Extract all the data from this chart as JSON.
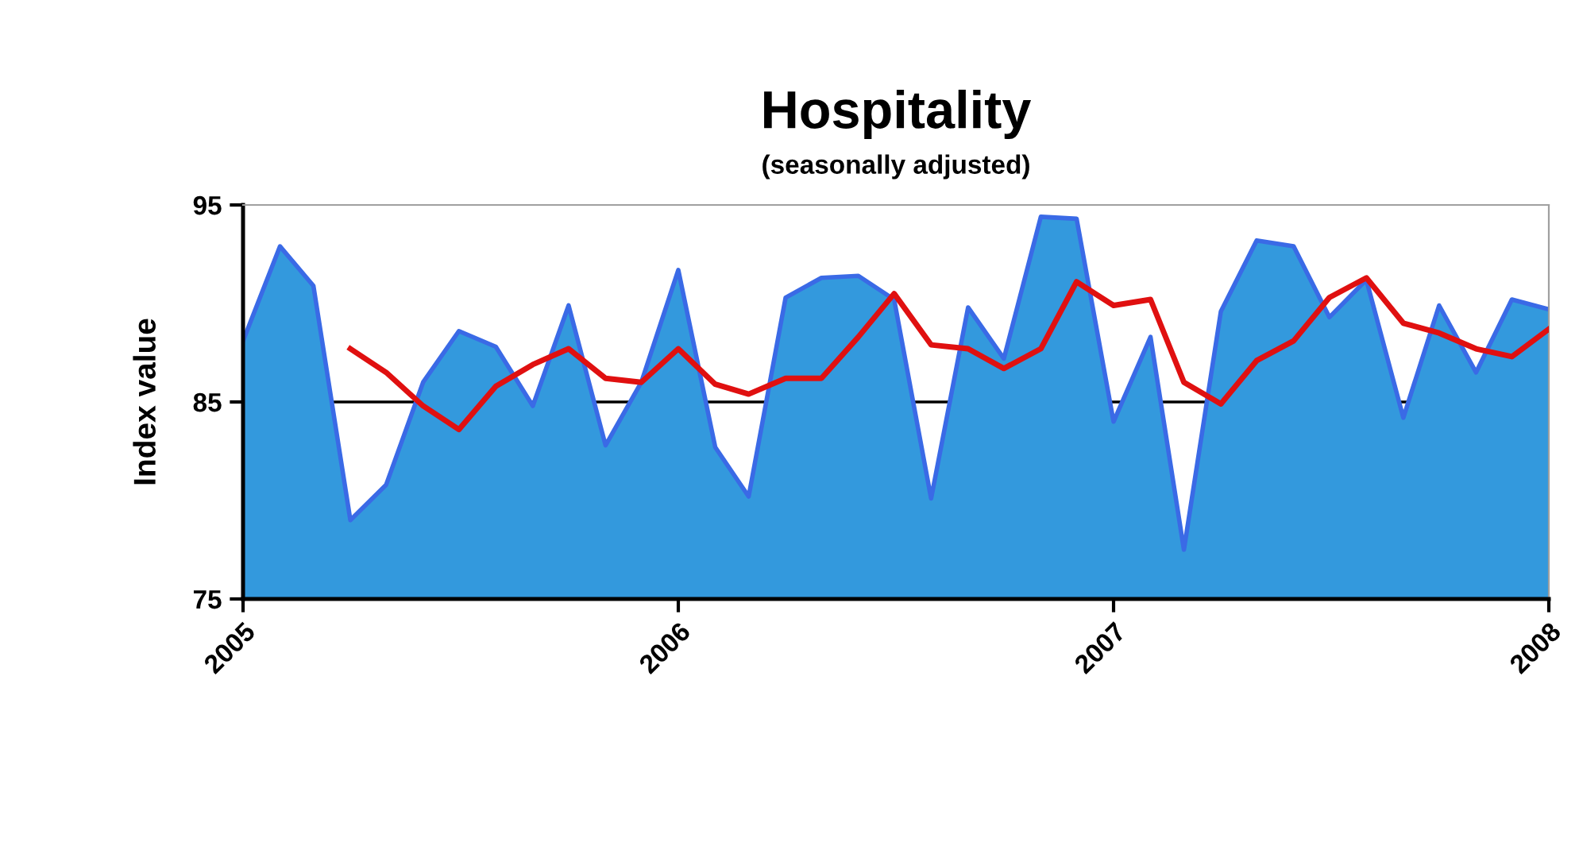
{
  "chart_data": {
    "type": "area",
    "title": "Hospitality",
    "subtitle": "(seasonally adjusted)",
    "ylabel": "Index value",
    "x": [
      "2005-01",
      "2005-02",
      "2005-03",
      "2005-04",
      "2005-05",
      "2005-06",
      "2005-07",
      "2005-08",
      "2005-09",
      "2005-10",
      "2005-11",
      "2005-12",
      "2006-01",
      "2006-02",
      "2006-03",
      "2006-04",
      "2006-05",
      "2006-06",
      "2006-07",
      "2006-08",
      "2006-09",
      "2006-10",
      "2006-11",
      "2006-12",
      "2007-01",
      "2007-02",
      "2007-03",
      "2007-04",
      "2007-05",
      "2007-06",
      "2007-07",
      "2007-08",
      "2007-09",
      "2007-10",
      "2007-11",
      "2007-12",
      "2008-01"
    ],
    "series": [
      {
        "color": "#3399dd",
        "values": [
          88.1,
          92.9,
          90.9,
          79.0,
          80.8,
          86.0,
          88.6,
          87.8,
          84.8,
          89.9,
          82.8,
          86.0,
          91.7,
          82.7,
          80.2,
          90.3,
          91.3,
          91.4,
          90.2,
          80.1,
          89.8,
          87.2,
          94.4,
          94.3,
          84.0,
          88.3,
          77.5,
          89.6,
          93.2,
          92.9,
          89.3,
          91.2,
          84.2,
          89.9,
          86.5,
          90.2,
          89.7
        ]
      },
      {
        "type": "line",
        "color": "#e01010",
        "x": [
          "2005-04",
          "2005-05",
          "2005-06",
          "2005-07",
          "2005-08",
          "2005-09",
          "2005-10",
          "2005-11",
          "2005-12",
          "2006-01",
          "2006-02",
          "2006-03",
          "2006-04",
          "2006-05",
          "2006-06",
          "2006-07",
          "2006-08",
          "2006-09",
          "2006-10",
          "2006-11",
          "2006-12",
          "2007-01",
          "2007-02",
          "2007-03",
          "2007-04",
          "2007-05",
          "2007-06",
          "2007-07",
          "2007-08",
          "2007-09",
          "2007-10",
          "2007-11",
          "2007-12",
          "2008-01"
        ],
        "values": [
          87.7,
          86.5,
          84.8,
          83.6,
          85.8,
          86.9,
          87.7,
          86.2,
          86.0,
          87.7,
          85.9,
          85.4,
          86.2,
          86.2,
          88.3,
          90.5,
          87.9,
          87.7,
          86.7,
          87.7,
          91.1,
          89.9,
          90.2,
          86.0,
          84.9,
          87.1,
          88.1,
          90.3,
          91.3,
          89.0,
          88.5,
          87.7,
          87.3,
          88.7
        ]
      }
    ],
    "xlim": [
      "2005-01",
      "2008-01"
    ],
    "xticks": [
      {
        "value": "2005-01",
        "label": "2005"
      },
      {
        "value": "2006-01",
        "label": "2006"
      },
      {
        "value": "2007-01",
        "label": "2007"
      },
      {
        "value": "2008-01",
        "label": "2008"
      }
    ],
    "ylim": [
      75,
      95
    ],
    "yticks": [
      75,
      85,
      95
    ],
    "ref_lines": [
      {
        "axis": "y",
        "value": 85,
        "color": "#000000"
      }
    ],
    "grid": false,
    "legend": false,
    "marker": "none",
    "line_style": "solid"
  }
}
